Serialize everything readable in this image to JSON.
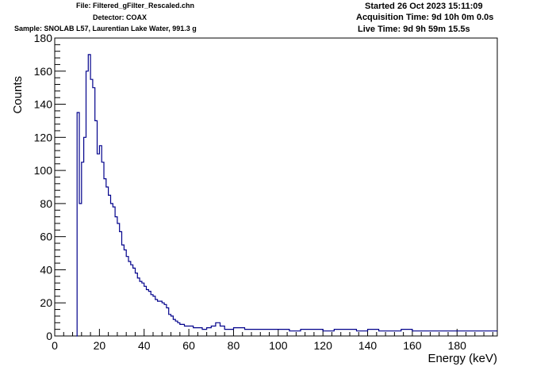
{
  "header": {
    "file": "File: Filtered_gFilter_Rescaled.chn",
    "detector": "Detector: COAX",
    "sample": "Sample: SNOLAB L57, Laurentian Lake Water, 991.3 g",
    "started": "Started 26 Oct 2023 15:11:09",
    "acquisition": "Acquisition Time: 9d 10h 0m 0.0s",
    "live": "Live Time: 9d 9h 59m 15.5s"
  },
  "colors": {
    "series": "#00008b",
    "axis": "#000000",
    "background": "#ffffff"
  },
  "chart_data": {
    "type": "line",
    "title": "",
    "xlabel": "Energy (keV)",
    "ylabel": "Counts",
    "xlim": [
      0,
      198
    ],
    "ylim": [
      0,
      180
    ],
    "xticks": [
      0,
      20,
      40,
      60,
      80,
      100,
      120,
      140,
      160,
      180
    ],
    "yticks": [
      0,
      20,
      40,
      60,
      80,
      100,
      120,
      140,
      160,
      180
    ],
    "grid": false,
    "legend": "none",
    "series": [
      {
        "x": [
          9.6,
          10,
          11,
          12,
          13,
          14,
          15,
          16,
          17,
          18,
          19,
          20,
          21,
          22,
          23,
          24,
          25,
          26,
          27,
          28,
          29,
          30,
          31,
          32,
          33,
          34,
          35,
          36,
          37,
          38,
          39,
          40,
          41,
          42,
          43,
          44,
          45,
          46,
          47,
          48,
          49,
          50,
          51,
          52,
          53,
          54,
          55,
          56,
          57,
          58,
          59,
          60,
          62,
          64,
          66,
          68,
          70,
          72,
          74,
          76,
          78,
          80,
          85,
          90,
          95,
          100,
          105,
          110,
          115,
          120,
          125,
          130,
          135,
          140,
          145,
          150,
          155,
          160,
          165,
          170,
          175,
          180,
          185,
          190,
          195,
          198
        ],
        "y": [
          0,
          135,
          80,
          105,
          120,
          160,
          170,
          155,
          150,
          130,
          110,
          115,
          105,
          95,
          90,
          85,
          80,
          78,
          72,
          68,
          63,
          55,
          52,
          48,
          45,
          43,
          41,
          38,
          35,
          33,
          32,
          30,
          28,
          27,
          25,
          24,
          22,
          21,
          21,
          20,
          19,
          17,
          13,
          12,
          10,
          9,
          8,
          7,
          7,
          6,
          6,
          6,
          5,
          5,
          4,
          5,
          6,
          8,
          6,
          4,
          4,
          5,
          4,
          4,
          4,
          4,
          3,
          4,
          4,
          3,
          4,
          4,
          3,
          4,
          3,
          3,
          4,
          3,
          3,
          3,
          3,
          3,
          3,
          3,
          3,
          3
        ]
      }
    ]
  }
}
